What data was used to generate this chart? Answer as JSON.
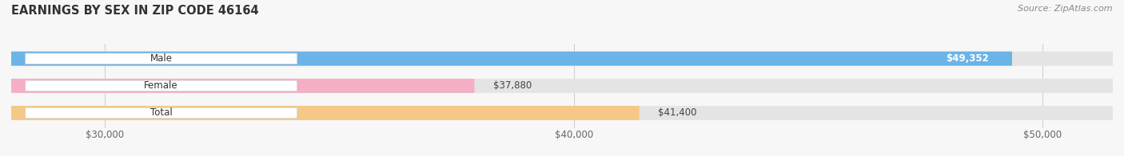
{
  "title": "EARNINGS BY SEX IN ZIP CODE 46164",
  "source": "Source: ZipAtlas.com",
  "categories": [
    "Male",
    "Female",
    "Total"
  ],
  "values": [
    49352,
    37880,
    41400
  ],
  "bar_colors": [
    "#6ab4e8",
    "#f4afc4",
    "#f5c888"
  ],
  "bar_bg_color": "#e4e4e4",
  "xmin": 28000,
  "xmax": 51500,
  "xticks": [
    30000,
    40000,
    50000
  ],
  "xtick_labels": [
    "$30,000",
    "$40,000",
    "$50,000"
  ],
  "value_labels": [
    "$49,352",
    "$37,880",
    "$41,400"
  ],
  "value_inside": [
    true,
    false,
    false
  ],
  "figsize": [
    14.06,
    1.96
  ],
  "dpi": 100,
  "bg_color": "#f7f7f7",
  "bar_height": 0.52,
  "title_fontsize": 10.5,
  "tick_fontsize": 8.5,
  "label_fontsize": 8.5,
  "value_fontsize": 8.5
}
